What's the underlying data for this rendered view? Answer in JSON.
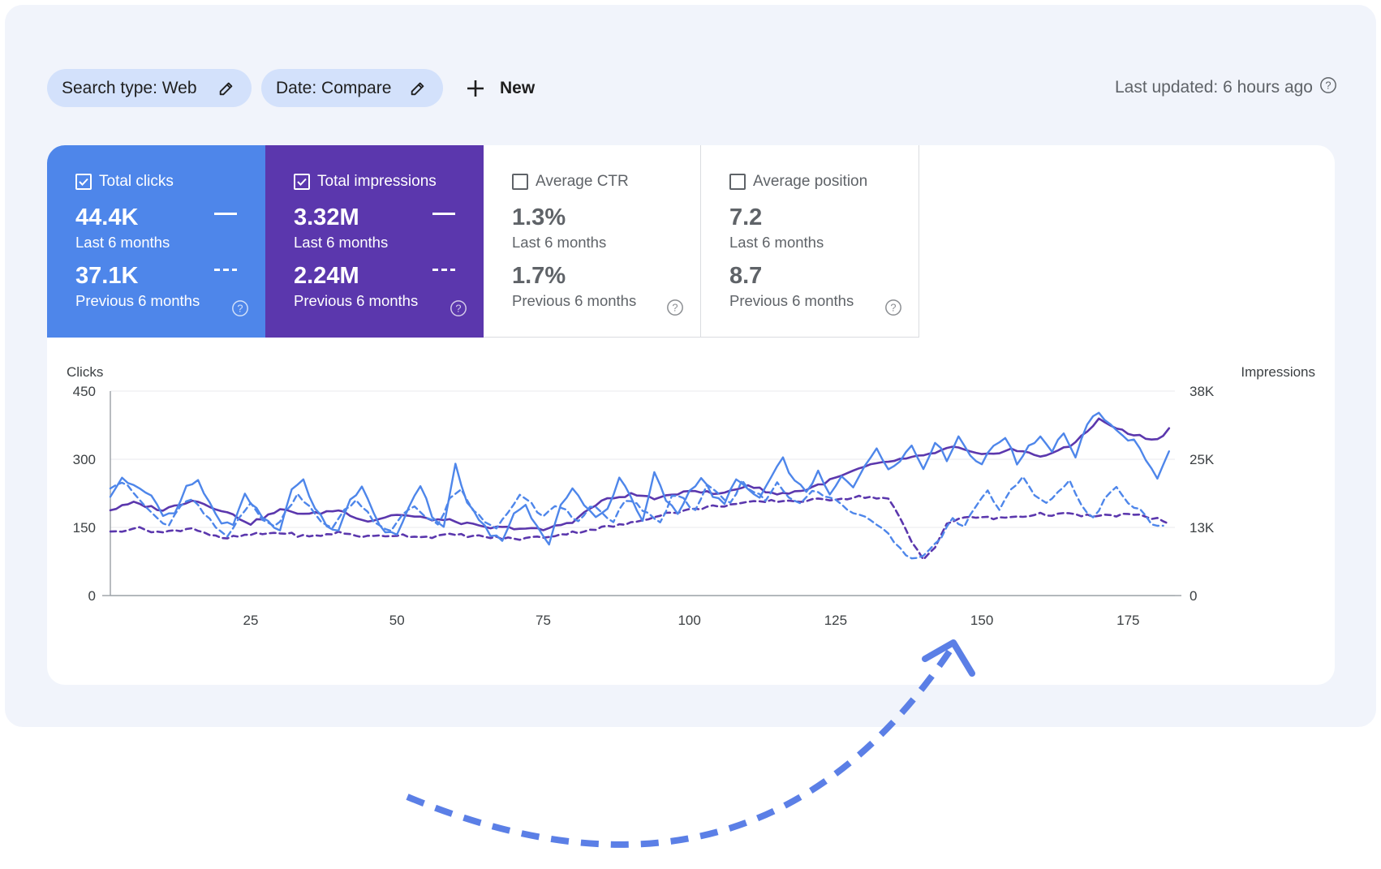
{
  "filters": {
    "search_type": {
      "label": "Search type: Web",
      "icon": "pencil-icon"
    },
    "date": {
      "label": "Date: Compare",
      "icon": "pencil-icon"
    },
    "new_button": {
      "label": "New",
      "icon": "plus-icon"
    }
  },
  "last_updated": {
    "text": "Last updated: 6 hours ago",
    "icon": "help-circle-icon"
  },
  "metrics": [
    {
      "title": "Total clicks",
      "checked": true,
      "current_value": "44.4K",
      "current_period": "Last 6 months",
      "previous_value": "37.1K",
      "previous_period": "Previous 6 months",
      "color": "#4e86ea"
    },
    {
      "title": "Total impressions",
      "checked": true,
      "current_value": "3.32M",
      "current_period": "Last 6 months",
      "previous_value": "2.24M",
      "previous_period": "Previous 6 months",
      "color": "#5b37ad"
    },
    {
      "title": "Average CTR",
      "checked": false,
      "current_value": "1.3%",
      "current_period": "Last 6 months",
      "previous_value": "1.7%",
      "previous_period": "Previous 6 months",
      "color": "#ffffff"
    },
    {
      "title": "Average position",
      "checked": false,
      "current_value": "7.2",
      "current_period": "Last 6 months",
      "previous_value": "8.7",
      "previous_period": "Previous 6 months",
      "color": "#ffffff"
    }
  ],
  "chart_data": {
    "type": "line",
    "ylabel": "Clicks",
    "y2label": "Impressions",
    "ylim": [
      0,
      450
    ],
    "y2lim": [
      0,
      38000
    ],
    "yticks": [
      "0",
      "150",
      "300",
      "450"
    ],
    "y2ticks": [
      "0",
      "13K",
      "25K",
      "38K"
    ],
    "xlim": [
      1,
      183
    ],
    "xticks": [
      25,
      50,
      75,
      100,
      125,
      150,
      175
    ],
    "grid": true,
    "series": [
      {
        "metric": "clicks",
        "period": "current",
        "style": "solid",
        "color": "#4e86ea",
        "anchors": [
          [
            1,
            215
          ],
          [
            3,
            260
          ],
          [
            5,
            240
          ],
          [
            8,
            220
          ],
          [
            10,
            180
          ],
          [
            12,
            180
          ],
          [
            14,
            238
          ],
          [
            16,
            255
          ],
          [
            18,
            200
          ],
          [
            20,
            155
          ],
          [
            22,
            160
          ],
          [
            24,
            220
          ],
          [
            26,
            190
          ],
          [
            28,
            160
          ],
          [
            30,
            145
          ],
          [
            32,
            235
          ],
          [
            34,
            255
          ],
          [
            36,
            190
          ],
          [
            38,
            155
          ],
          [
            40,
            140
          ],
          [
            42,
            210
          ],
          [
            44,
            240
          ],
          [
            46,
            180
          ],
          [
            48,
            140
          ],
          [
            50,
            130
          ],
          [
            52,
            195
          ],
          [
            54,
            245
          ],
          [
            56,
            175
          ],
          [
            58,
            150
          ],
          [
            60,
            290
          ],
          [
            62,
            200
          ],
          [
            64,
            170
          ],
          [
            66,
            135
          ],
          [
            68,
            120
          ],
          [
            70,
            180
          ],
          [
            72,
            200
          ],
          [
            74,
            150
          ],
          [
            76,
            115
          ],
          [
            78,
            195
          ],
          [
            80,
            240
          ],
          [
            82,
            200
          ],
          [
            84,
            170
          ],
          [
            86,
            190
          ],
          [
            88,
            260
          ],
          [
            90,
            220
          ],
          [
            92,
            160
          ],
          [
            94,
            270
          ],
          [
            96,
            210
          ],
          [
            98,
            180
          ],
          [
            100,
            230
          ],
          [
            102,
            260
          ],
          [
            104,
            220
          ],
          [
            106,
            200
          ],
          [
            108,
            260
          ],
          [
            110,
            230
          ],
          [
            112,
            215
          ],
          [
            114,
            260
          ],
          [
            116,
            300
          ],
          [
            118,
            250
          ],
          [
            120,
            230
          ],
          [
            122,
            270
          ],
          [
            124,
            220
          ],
          [
            126,
            260
          ],
          [
            128,
            240
          ],
          [
            130,
            290
          ],
          [
            132,
            320
          ],
          [
            134,
            280
          ],
          [
            136,
            300
          ],
          [
            138,
            330
          ],
          [
            140,
            280
          ],
          [
            142,
            340
          ],
          [
            144,
            300
          ],
          [
            146,
            350
          ],
          [
            148,
            310
          ],
          [
            150,
            290
          ],
          [
            152,
            330
          ],
          [
            154,
            350
          ],
          [
            156,
            290
          ],
          [
            158,
            330
          ],
          [
            160,
            350
          ],
          [
            162,
            320
          ],
          [
            164,
            360
          ],
          [
            166,
            300
          ],
          [
            168,
            380
          ],
          [
            170,
            400
          ],
          [
            172,
            380
          ],
          [
            174,
            350
          ],
          [
            176,
            340
          ],
          [
            178,
            300
          ],
          [
            180,
            260
          ],
          [
            182,
            320
          ]
        ]
      },
      {
        "metric": "clicks",
        "period": "previous",
        "style": "dashed",
        "color": "#4e86ea",
        "anchors": [
          [
            1,
            240
          ],
          [
            3,
            250
          ],
          [
            5,
            225
          ],
          [
            7,
            195
          ],
          [
            9,
            170
          ],
          [
            11,
            150
          ],
          [
            13,
            200
          ],
          [
            15,
            210
          ],
          [
            17,
            180
          ],
          [
            19,
            150
          ],
          [
            21,
            130
          ],
          [
            23,
            175
          ],
          [
            25,
            200
          ],
          [
            27,
            170
          ],
          [
            29,
            150
          ],
          [
            31,
            185
          ],
          [
            33,
            225
          ],
          [
            35,
            195
          ],
          [
            37,
            160
          ],
          [
            39,
            150
          ],
          [
            41,
            190
          ],
          [
            43,
            210
          ],
          [
            45,
            180
          ],
          [
            47,
            150
          ],
          [
            49,
            140
          ],
          [
            51,
            180
          ],
          [
            53,
            200
          ],
          [
            55,
            170
          ],
          [
            57,
            155
          ],
          [
            59,
            210
          ],
          [
            61,
            230
          ],
          [
            63,
            190
          ],
          [
            65,
            160
          ],
          [
            67,
            150
          ],
          [
            69,
            180
          ],
          [
            71,
            220
          ],
          [
            73,
            200
          ],
          [
            75,
            170
          ],
          [
            77,
            200
          ],
          [
            79,
            185
          ],
          [
            81,
            160
          ],
          [
            83,
            200
          ],
          [
            85,
            180
          ],
          [
            87,
            160
          ],
          [
            89,
            210
          ],
          [
            91,
            200
          ],
          [
            93,
            180
          ],
          [
            95,
            160
          ],
          [
            97,
            220
          ],
          [
            99,
            210
          ],
          [
            101,
            190
          ],
          [
            103,
            240
          ],
          [
            105,
            220
          ],
          [
            107,
            200
          ],
          [
            109,
            250
          ],
          [
            111,
            230
          ],
          [
            113,
            210
          ],
          [
            115,
            250
          ],
          [
            117,
            220
          ],
          [
            119,
            200
          ],
          [
            121,
            230
          ],
          [
            123,
            220
          ],
          [
            125,
            210
          ],
          [
            127,
            190
          ],
          [
            129,
            180
          ],
          [
            131,
            170
          ],
          [
            133,
            150
          ],
          [
            135,
            120
          ],
          [
            137,
            90
          ],
          [
            139,
            80
          ],
          [
            141,
            100
          ],
          [
            143,
            130
          ],
          [
            145,
            170
          ],
          [
            147,
            150
          ],
          [
            149,
            200
          ],
          [
            151,
            230
          ],
          [
            153,
            190
          ],
          [
            155,
            230
          ],
          [
            157,
            260
          ],
          [
            159,
            220
          ],
          [
            161,
            200
          ],
          [
            163,
            230
          ],
          [
            165,
            250
          ],
          [
            167,
            200
          ],
          [
            169,
            170
          ],
          [
            171,
            210
          ],
          [
            173,
            240
          ],
          [
            175,
            200
          ],
          [
            177,
            190
          ],
          [
            179,
            160
          ],
          [
            181,
            150
          ]
        ]
      },
      {
        "metric": "impressions",
        "period": "current",
        "style": "solid",
        "color": "#5b37ad",
        "anchors": [
          [
            1,
            15900
          ],
          [
            5,
            17200
          ],
          [
            10,
            15900
          ],
          [
            15,
            17800
          ],
          [
            20,
            15900
          ],
          [
            25,
            13400
          ],
          [
            30,
            15900
          ],
          [
            35,
            15100
          ],
          [
            40,
            15900
          ],
          [
            45,
            13800
          ],
          [
            50,
            15100
          ],
          [
            55,
            14300
          ],
          [
            60,
            13800
          ],
          [
            65,
            12600
          ],
          [
            70,
            12600
          ],
          [
            75,
            12200
          ],
          [
            80,
            13800
          ],
          [
            85,
            17600
          ],
          [
            90,
            18800
          ],
          [
            95,
            18000
          ],
          [
            100,
            19700
          ],
          [
            105,
            18800
          ],
          [
            110,
            20500
          ],
          [
            115,
            18800
          ],
          [
            120,
            19700
          ],
          [
            125,
            21800
          ],
          [
            130,
            23900
          ],
          [
            135,
            25100
          ],
          [
            140,
            25900
          ],
          [
            145,
            27600
          ],
          [
            150,
            26000
          ],
          [
            155,
            27200
          ],
          [
            160,
            25900
          ],
          [
            165,
            27600
          ],
          [
            170,
            32700
          ],
          [
            175,
            30100
          ],
          [
            180,
            28900
          ],
          [
            182,
            31000
          ]
        ]
      },
      {
        "metric": "impressions",
        "period": "previous",
        "style": "dashed",
        "color": "#5b37ad",
        "anchors": [
          [
            1,
            11700
          ],
          [
            5,
            12600
          ],
          [
            10,
            11700
          ],
          [
            15,
            12600
          ],
          [
            20,
            10500
          ],
          [
            25,
            11300
          ],
          [
            30,
            11700
          ],
          [
            35,
            10900
          ],
          [
            40,
            11700
          ],
          [
            45,
            10900
          ],
          [
            50,
            11300
          ],
          [
            55,
            10900
          ],
          [
            60,
            11300
          ],
          [
            65,
            10900
          ],
          [
            70,
            10500
          ],
          [
            75,
            10900
          ],
          [
            80,
            11700
          ],
          [
            85,
            12600
          ],
          [
            90,
            13400
          ],
          [
            95,
            15100
          ],
          [
            100,
            15900
          ],
          [
            105,
            16700
          ],
          [
            110,
            17200
          ],
          [
            115,
            17600
          ],
          [
            120,
            17600
          ],
          [
            125,
            18000
          ],
          [
            130,
            18400
          ],
          [
            134,
            18000
          ],
          [
            136,
            14300
          ],
          [
            138,
            10000
          ],
          [
            140,
            6700
          ],
          [
            142,
            9200
          ],
          [
            144,
            13400
          ],
          [
            148,
            14700
          ],
          [
            152,
            14300
          ],
          [
            156,
            14700
          ],
          [
            160,
            15100
          ],
          [
            164,
            15100
          ],
          [
            170,
            14700
          ],
          [
            175,
            15100
          ],
          [
            180,
            14300
          ],
          [
            182,
            13400
          ]
        ]
      }
    ]
  },
  "decoration": {
    "arrow_color": "#5b7fe6"
  }
}
